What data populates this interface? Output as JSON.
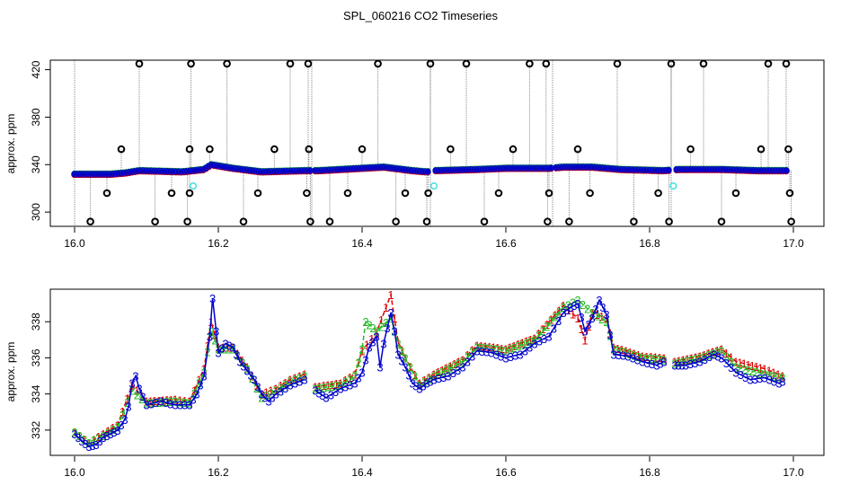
{
  "title": "SPL_060216  CO2 Timeseries",
  "colors": {
    "ch1": "#dd0000",
    "ch2": "#22bb22",
    "ch3": "#0000cc",
    "outlier": "#000000",
    "cyan": "#44dddd",
    "spike": "#888888"
  },
  "chart_data": [
    {
      "type": "scatter",
      "ylabel": "approx. ppm",
      "xlabel": "",
      "xlim": [
        16.0,
        17.0
      ],
      "ylim": [
        288,
        428
      ],
      "xticks": [
        "16.0",
        "16.2",
        "16.4",
        "16.6",
        "16.8",
        "17.0"
      ],
      "xtick_values": [
        16.0,
        16.2,
        16.4,
        16.6,
        16.8,
        17.0
      ],
      "yticks": [
        "300",
        "340",
        "380",
        "420"
      ],
      "ytick_values": [
        300,
        340,
        380,
        420
      ],
      "baseline": [
        [
          16.0,
          332
        ],
        [
          16.05,
          332
        ],
        [
          16.07,
          333
        ],
        [
          16.09,
          335
        ],
        [
          16.15,
          334
        ],
        [
          16.18,
          336
        ],
        [
          16.19,
          340
        ],
        [
          16.22,
          337
        ],
        [
          16.26,
          334
        ],
        [
          16.32,
          335
        ],
        [
          16.34,
          335
        ],
        [
          16.37,
          336
        ],
        [
          16.43,
          338
        ],
        [
          16.47,
          335
        ],
        [
          16.49,
          334
        ],
        [
          16.5,
          335
        ],
        [
          16.56,
          336
        ],
        [
          16.6,
          337
        ],
        [
          16.66,
          337
        ],
        [
          16.68,
          338
        ],
        [
          16.72,
          338
        ],
        [
          16.76,
          336
        ],
        [
          16.82,
          335
        ],
        [
          16.84,
          336
        ],
        [
          16.9,
          336
        ],
        [
          16.95,
          335
        ],
        [
          16.99,
          335
        ]
      ],
      "gaps": [
        [
          16.33,
          16.335
        ],
        [
          16.495,
          16.5
        ],
        [
          16.665,
          16.67
        ],
        [
          16.83,
          16.835
        ]
      ],
      "outliers_high": [
        16.09,
        16.162,
        16.212,
        16.3,
        16.325,
        16.422,
        16.495,
        16.545,
        16.633,
        16.656,
        16.755,
        16.83,
        16.875,
        16.965,
        16.99
      ],
      "outliers_mid": [
        16.065,
        16.16,
        16.188,
        16.278,
        16.326,
        16.4,
        16.523,
        16.61,
        16.7,
        16.857,
        16.955,
        16.993
      ],
      "outliers_low": [
        16.045,
        16.135,
        16.16,
        16.255,
        16.323,
        16.38,
        16.46,
        16.492,
        16.59,
        16.66,
        16.717,
        16.812,
        16.92,
        16.995
      ],
      "outliers_bottom": [
        16.022,
        16.112,
        16.157,
        16.235,
        16.328,
        16.355,
        16.447,
        16.49,
        16.57,
        16.658,
        16.688,
        16.778,
        16.827,
        16.9,
        16.997
      ],
      "cyan_points": [
        [
          16.165,
          322
        ],
        [
          16.5,
          322
        ],
        [
          16.833,
          322
        ]
      ]
    },
    {
      "type": "line",
      "ylabel": "approx. ppm",
      "xlabel": "",
      "xlim": [
        16.0,
        17.0
      ],
      "ylim": [
        330.6,
        339.8
      ],
      "xticks": [
        "16.0",
        "16.2",
        "16.4",
        "16.6",
        "16.8",
        "17.0"
      ],
      "xtick_values": [
        16.0,
        16.2,
        16.4,
        16.6,
        16.8,
        17.0
      ],
      "yticks": [
        "332",
        "334",
        "336",
        "338"
      ],
      "ytick_values": [
        332,
        334,
        336,
        338
      ],
      "series": [
        {
          "marker": "3",
          "color": "ch3",
          "segments": [
            [
              [
                16.0,
                331.8
              ],
              [
                16.01,
                331.4
              ],
              [
                16.02,
                331.1
              ],
              [
                16.03,
                331.2
              ],
              [
                16.04,
                331.6
              ],
              [
                16.05,
                331.8
              ],
              [
                16.06,
                332.0
              ],
              [
                16.07,
                332.6
              ],
              [
                16.075,
                333.3
              ],
              [
                16.08,
                334.6
              ],
              [
                16.085,
                335.0
              ],
              [
                16.09,
                334.3
              ],
              [
                16.1,
                333.4
              ],
              [
                16.12,
                333.6
              ],
              [
                16.14,
                333.4
              ],
              [
                16.16,
                333.4
              ],
              [
                16.17,
                334.0
              ],
              [
                16.18,
                335.0
              ],
              [
                16.188,
                337.2
              ],
              [
                16.192,
                339.3
              ],
              [
                16.197,
                337.5
              ],
              [
                16.2,
                336.3
              ],
              [
                16.21,
                336.8
              ],
              [
                16.22,
                336.6
              ],
              [
                16.23,
                335.8
              ],
              [
                16.24,
                335.3
              ],
              [
                16.25,
                334.8
              ],
              [
                16.26,
                334.0
              ],
              [
                16.27,
                333.6
              ],
              [
                16.28,
                334.0
              ],
              [
                16.3,
                334.5
              ],
              [
                16.32,
                334.8
              ]
            ],
            [
              [
                16.335,
                334.2
              ],
              [
                16.35,
                333.8
              ],
              [
                16.37,
                334.3
              ],
              [
                16.39,
                334.6
              ],
              [
                16.4,
                335.2
              ],
              [
                16.41,
                336.6
              ],
              [
                16.42,
                337.2
              ],
              [
                16.425,
                335.5
              ],
              [
                16.43,
                336.8
              ],
              [
                16.44,
                338.5
              ],
              [
                16.445,
                337.5
              ],
              [
                16.45,
                336.2
              ],
              [
                16.46,
                335.5
              ],
              [
                16.47,
                334.6
              ],
              [
                16.48,
                334.3
              ],
              [
                16.49,
                334.6
              ],
              [
                16.5,
                334.8
              ],
              [
                16.52,
                335.0
              ],
              [
                16.54,
                335.5
              ],
              [
                16.56,
                336.4
              ],
              [
                16.58,
                336.3
              ],
              [
                16.6,
                336.0
              ],
              [
                16.62,
                336.2
              ],
              [
                16.64,
                336.8
              ],
              [
                16.66,
                337.2
              ],
              [
                16.68,
                338.5
              ],
              [
                16.69,
                338.8
              ],
              [
                16.7,
                339.0
              ],
              [
                16.71,
                337.5
              ],
              [
                16.72,
                338.2
              ],
              [
                16.73,
                339.2
              ],
              [
                16.74,
                338.4
              ],
              [
                16.75,
                336.2
              ],
              [
                16.77,
                336.1
              ],
              [
                16.79,
                335.8
              ],
              [
                16.81,
                335.6
              ],
              [
                16.82,
                335.8
              ]
            ],
            [
              [
                16.835,
                335.6
              ],
              [
                16.85,
                335.6
              ],
              [
                16.87,
                335.8
              ],
              [
                16.89,
                336.2
              ],
              [
                16.9,
                336.0
              ],
              [
                16.92,
                335.2
              ],
              [
                16.94,
                334.8
              ],
              [
                16.96,
                334.9
              ],
              [
                16.98,
                334.6
              ],
              [
                16.985,
                334.7
              ]
            ]
          ]
        },
        {
          "marker": "2",
          "color": "ch2",
          "segments": [
            [
              [
                16.0,
                331.9
              ],
              [
                16.02,
                331.3
              ],
              [
                16.04,
                331.7
              ],
              [
                16.06,
                332.2
              ],
              [
                16.08,
                334.2
              ],
              [
                16.1,
                333.5
              ],
              [
                16.14,
                333.6
              ],
              [
                16.16,
                333.5
              ],
              [
                16.18,
                335.2
              ],
              [
                16.19,
                337.5
              ],
              [
                16.2,
                336.5
              ],
              [
                16.22,
                336.5
              ],
              [
                16.24,
                335.4
              ],
              [
                16.26,
                333.8
              ],
              [
                16.28,
                334.2
              ],
              [
                16.3,
                334.7
              ],
              [
                16.32,
                335.0
              ]
            ],
            [
              [
                16.335,
                334.3
              ],
              [
                16.37,
                334.5
              ],
              [
                16.39,
                335.0
              ],
              [
                16.4,
                336.5
              ],
              [
                16.405,
                338.0
              ],
              [
                16.42,
                337.5
              ],
              [
                16.44,
                338.2
              ],
              [
                16.45,
                336.8
              ],
              [
                16.46,
                336.0
              ],
              [
                16.48,
                334.5
              ],
              [
                16.5,
                335.0
              ],
              [
                16.54,
                335.8
              ],
              [
                16.56,
                336.6
              ],
              [
                16.6,
                336.4
              ],
              [
                16.64,
                337.0
              ],
              [
                16.68,
                338.8
              ],
              [
                16.7,
                339.2
              ],
              [
                16.72,
                338.5
              ],
              [
                16.74,
                338.0
              ],
              [
                16.75,
                336.5
              ],
              [
                16.79,
                336.0
              ],
              [
                16.82,
                335.9
              ]
            ],
            [
              [
                16.835,
                335.7
              ],
              [
                16.87,
                336.0
              ],
              [
                16.9,
                336.4
              ],
              [
                16.92,
                335.5
              ],
              [
                16.96,
                335.1
              ],
              [
                16.985,
                334.9
              ]
            ]
          ]
        },
        {
          "marker": "1",
          "color": "ch1",
          "segments": [
            [
              [
                16.0,
                331.9
              ],
              [
                16.02,
                331.3
              ],
              [
                16.04,
                331.8
              ],
              [
                16.06,
                332.3
              ],
              [
                16.08,
                334.5
              ],
              [
                16.1,
                333.6
              ],
              [
                16.14,
                333.7
              ],
              [
                16.16,
                333.6
              ],
              [
                16.18,
                335.4
              ],
              [
                16.19,
                338.0
              ],
              [
                16.2,
                336.6
              ],
              [
                16.22,
                336.6
              ],
              [
                16.24,
                335.5
              ],
              [
                16.26,
                334.0
              ],
              [
                16.28,
                334.3
              ],
              [
                16.3,
                334.8
              ],
              [
                16.32,
                335.1
              ]
            ],
            [
              [
                16.335,
                334.4
              ],
              [
                16.37,
                334.6
              ],
              [
                16.39,
                335.1
              ],
              [
                16.4,
                336.4
              ],
              [
                16.42,
                337.4
              ],
              [
                16.44,
                339.5
              ],
              [
                16.45,
                336.9
              ],
              [
                16.46,
                336.0
              ],
              [
                16.48,
                334.6
              ],
              [
                16.5,
                335.1
              ],
              [
                16.54,
                335.9
              ],
              [
                16.56,
                336.7
              ],
              [
                16.6,
                336.5
              ],
              [
                16.64,
                337.1
              ],
              [
                16.68,
                338.9
              ],
              [
                16.7,
                338.2
              ],
              [
                16.71,
                337.0
              ],
              [
                16.72,
                338.5
              ],
              [
                16.74,
                338.2
              ],
              [
                16.75,
                336.6
              ],
              [
                16.79,
                336.1
              ],
              [
                16.82,
                336.0
              ]
            ],
            [
              [
                16.835,
                335.8
              ],
              [
                16.87,
                336.1
              ],
              [
                16.9,
                336.5
              ],
              [
                16.92,
                335.8
              ],
              [
                16.96,
                335.4
              ],
              [
                16.985,
                335.0
              ]
            ]
          ]
        }
      ]
    }
  ]
}
